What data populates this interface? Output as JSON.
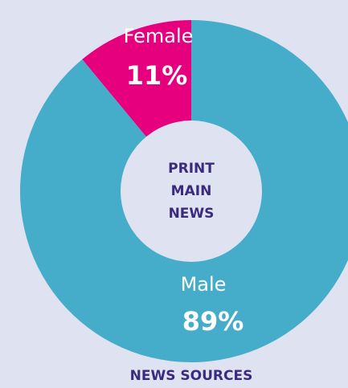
{
  "chart_data": {
    "type": "pie",
    "donut": true,
    "title": "NEWS SOURCES",
    "center_label": [
      "PRINT",
      "MAIN",
      "NEWS"
    ],
    "categories": [
      "Female",
      "Male"
    ],
    "values": [
      11,
      89
    ],
    "value_labels": [
      "11%",
      "89%"
    ],
    "colors": [
      "#e6007e",
      "#45adc9"
    ]
  }
}
